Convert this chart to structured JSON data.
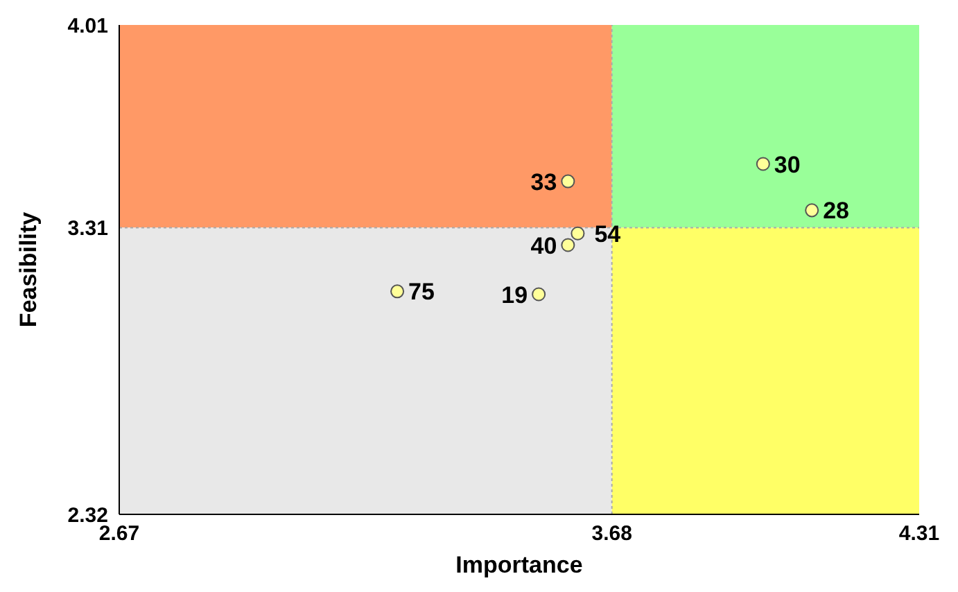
{
  "chart_data": {
    "type": "scatter",
    "xlabel": "Importance",
    "ylabel": "Feasibility",
    "x": [
      3.59,
      3.99,
      4.09,
      3.61,
      3.59,
      3.24,
      3.53
    ],
    "values": [
      3.47,
      3.53,
      3.37,
      3.29,
      3.25,
      3.09,
      3.08
    ],
    "color": "#ffff99",
    "marker": "circle",
    "xlim": [
      2.67,
      4.31
    ],
    "xticks": [
      2.67,
      3.68,
      4.31
    ],
    "ylim": [
      2.32,
      4.01
    ],
    "yticks": [
      2.32,
      3.31,
      4.01
    ],
    "grid": false,
    "ref_lines": [
      {
        "axis": "x",
        "value": 3.68,
        "color": "#aaaaaa",
        "line_style": "dotted"
      },
      {
        "axis": "y",
        "value": 3.31,
        "color": "#aaaaaa",
        "line_style": "dotted"
      }
    ],
    "annotations": [
      {
        "text": "33",
        "x": 3.59,
        "y": 3.47
      },
      {
        "text": "30",
        "x": 3.99,
        "y": 3.53
      },
      {
        "text": "28",
        "x": 4.09,
        "y": 3.37
      },
      {
        "text": "54",
        "x": 3.61,
        "y": 3.29
      },
      {
        "text": "40",
        "x": 3.59,
        "y": 3.25
      },
      {
        "text": "75",
        "x": 3.24,
        "y": 3.09
      },
      {
        "text": "19",
        "x": 3.53,
        "y": 3.08
      }
    ]
  }
}
